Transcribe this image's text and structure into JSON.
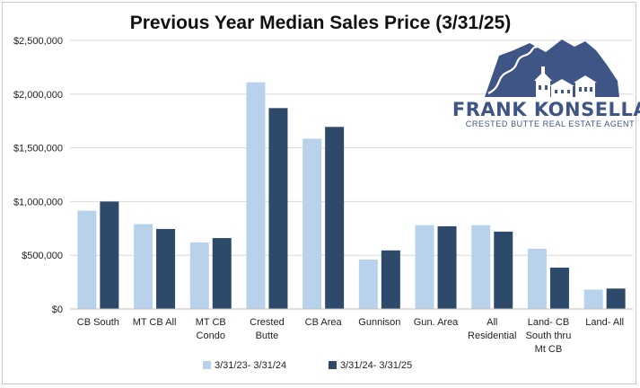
{
  "chart_data": {
    "type": "bar",
    "title": "Previous Year Median Sales Price (3/31/25)",
    "xlabel": "",
    "ylabel": "",
    "ylim": [
      0,
      2500000
    ],
    "ytick_values": [
      0,
      500000,
      1000000,
      1500000,
      2000000,
      2500000
    ],
    "ytick_labels": [
      "$0",
      "$500,000",
      "$1,000,000",
      "$1,500,000",
      "$2,000,000",
      "$2,500,000"
    ],
    "grid": "horizontal",
    "legend_position": "bottom",
    "categories": [
      "CB South",
      "MT CB All",
      "MT CB Condo",
      "Crested Butte",
      "CB Area",
      "Gunnison",
      "Gun. Area",
      "All Residential",
      "Land- CB South thru Mt CB",
      "Land- All"
    ],
    "category_lines": [
      [
        "CB South"
      ],
      [
        "MT CB All"
      ],
      [
        "MT CB",
        "Condo"
      ],
      [
        "Crested",
        "Butte"
      ],
      [
        "CB Area"
      ],
      [
        "Gunnison"
      ],
      [
        "Gun. Area"
      ],
      [
        "All",
        "Residential"
      ],
      [
        "Land- CB",
        "South thru",
        "Mt CB"
      ],
      [
        "Land- All"
      ]
    ],
    "series": [
      {
        "name": "3/31/23- 3/31/24",
        "color": "#b8d2ec",
        "values": [
          915000,
          790000,
          620000,
          2110000,
          1585000,
          460000,
          780000,
          780000,
          560000,
          180000
        ]
      },
      {
        "name": "3/31/24- 3/31/25",
        "color": "#2e4a6b",
        "values": [
          1000000,
          745000,
          660000,
          1870000,
          1695000,
          545000,
          770000,
          720000,
          385000,
          190000
        ]
      }
    ]
  },
  "logo": {
    "name": "FRANK KONSELLA",
    "tagline": "CRESTED BUTTE REAL ESTATE AGENT",
    "color": "#3f5586"
  }
}
